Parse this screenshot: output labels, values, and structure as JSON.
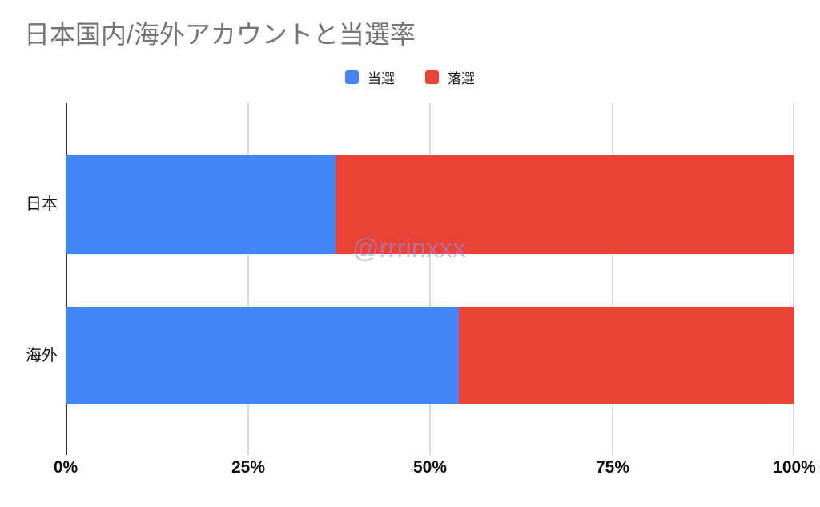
{
  "chart_data": {
    "type": "bar",
    "orientation": "horizontal",
    "stacked": true,
    "percent_stacked": true,
    "title": "日本国内/海外アカウントと当選率",
    "categories": [
      "日本",
      "海外"
    ],
    "series": [
      {
        "name": "当選",
        "color": "#4285F4",
        "values": [
          37,
          54
        ]
      },
      {
        "name": "落選",
        "color": "#EA4335",
        "values": [
          63,
          46
        ]
      }
    ],
    "x_axis": {
      "ticks": [
        "0%",
        "25%",
        "50%",
        "75%",
        "100%"
      ],
      "range": [
        0,
        100
      ],
      "unit": "%"
    },
    "ylabel": "",
    "xlabel": "",
    "legend_position": "top-center",
    "grid": true,
    "watermark": "@rrrinxxx",
    "title_color": "#757575",
    "gridline_color": "#dadada",
    "axis_color": "#333333",
    "background_color": "#ffffff"
  }
}
